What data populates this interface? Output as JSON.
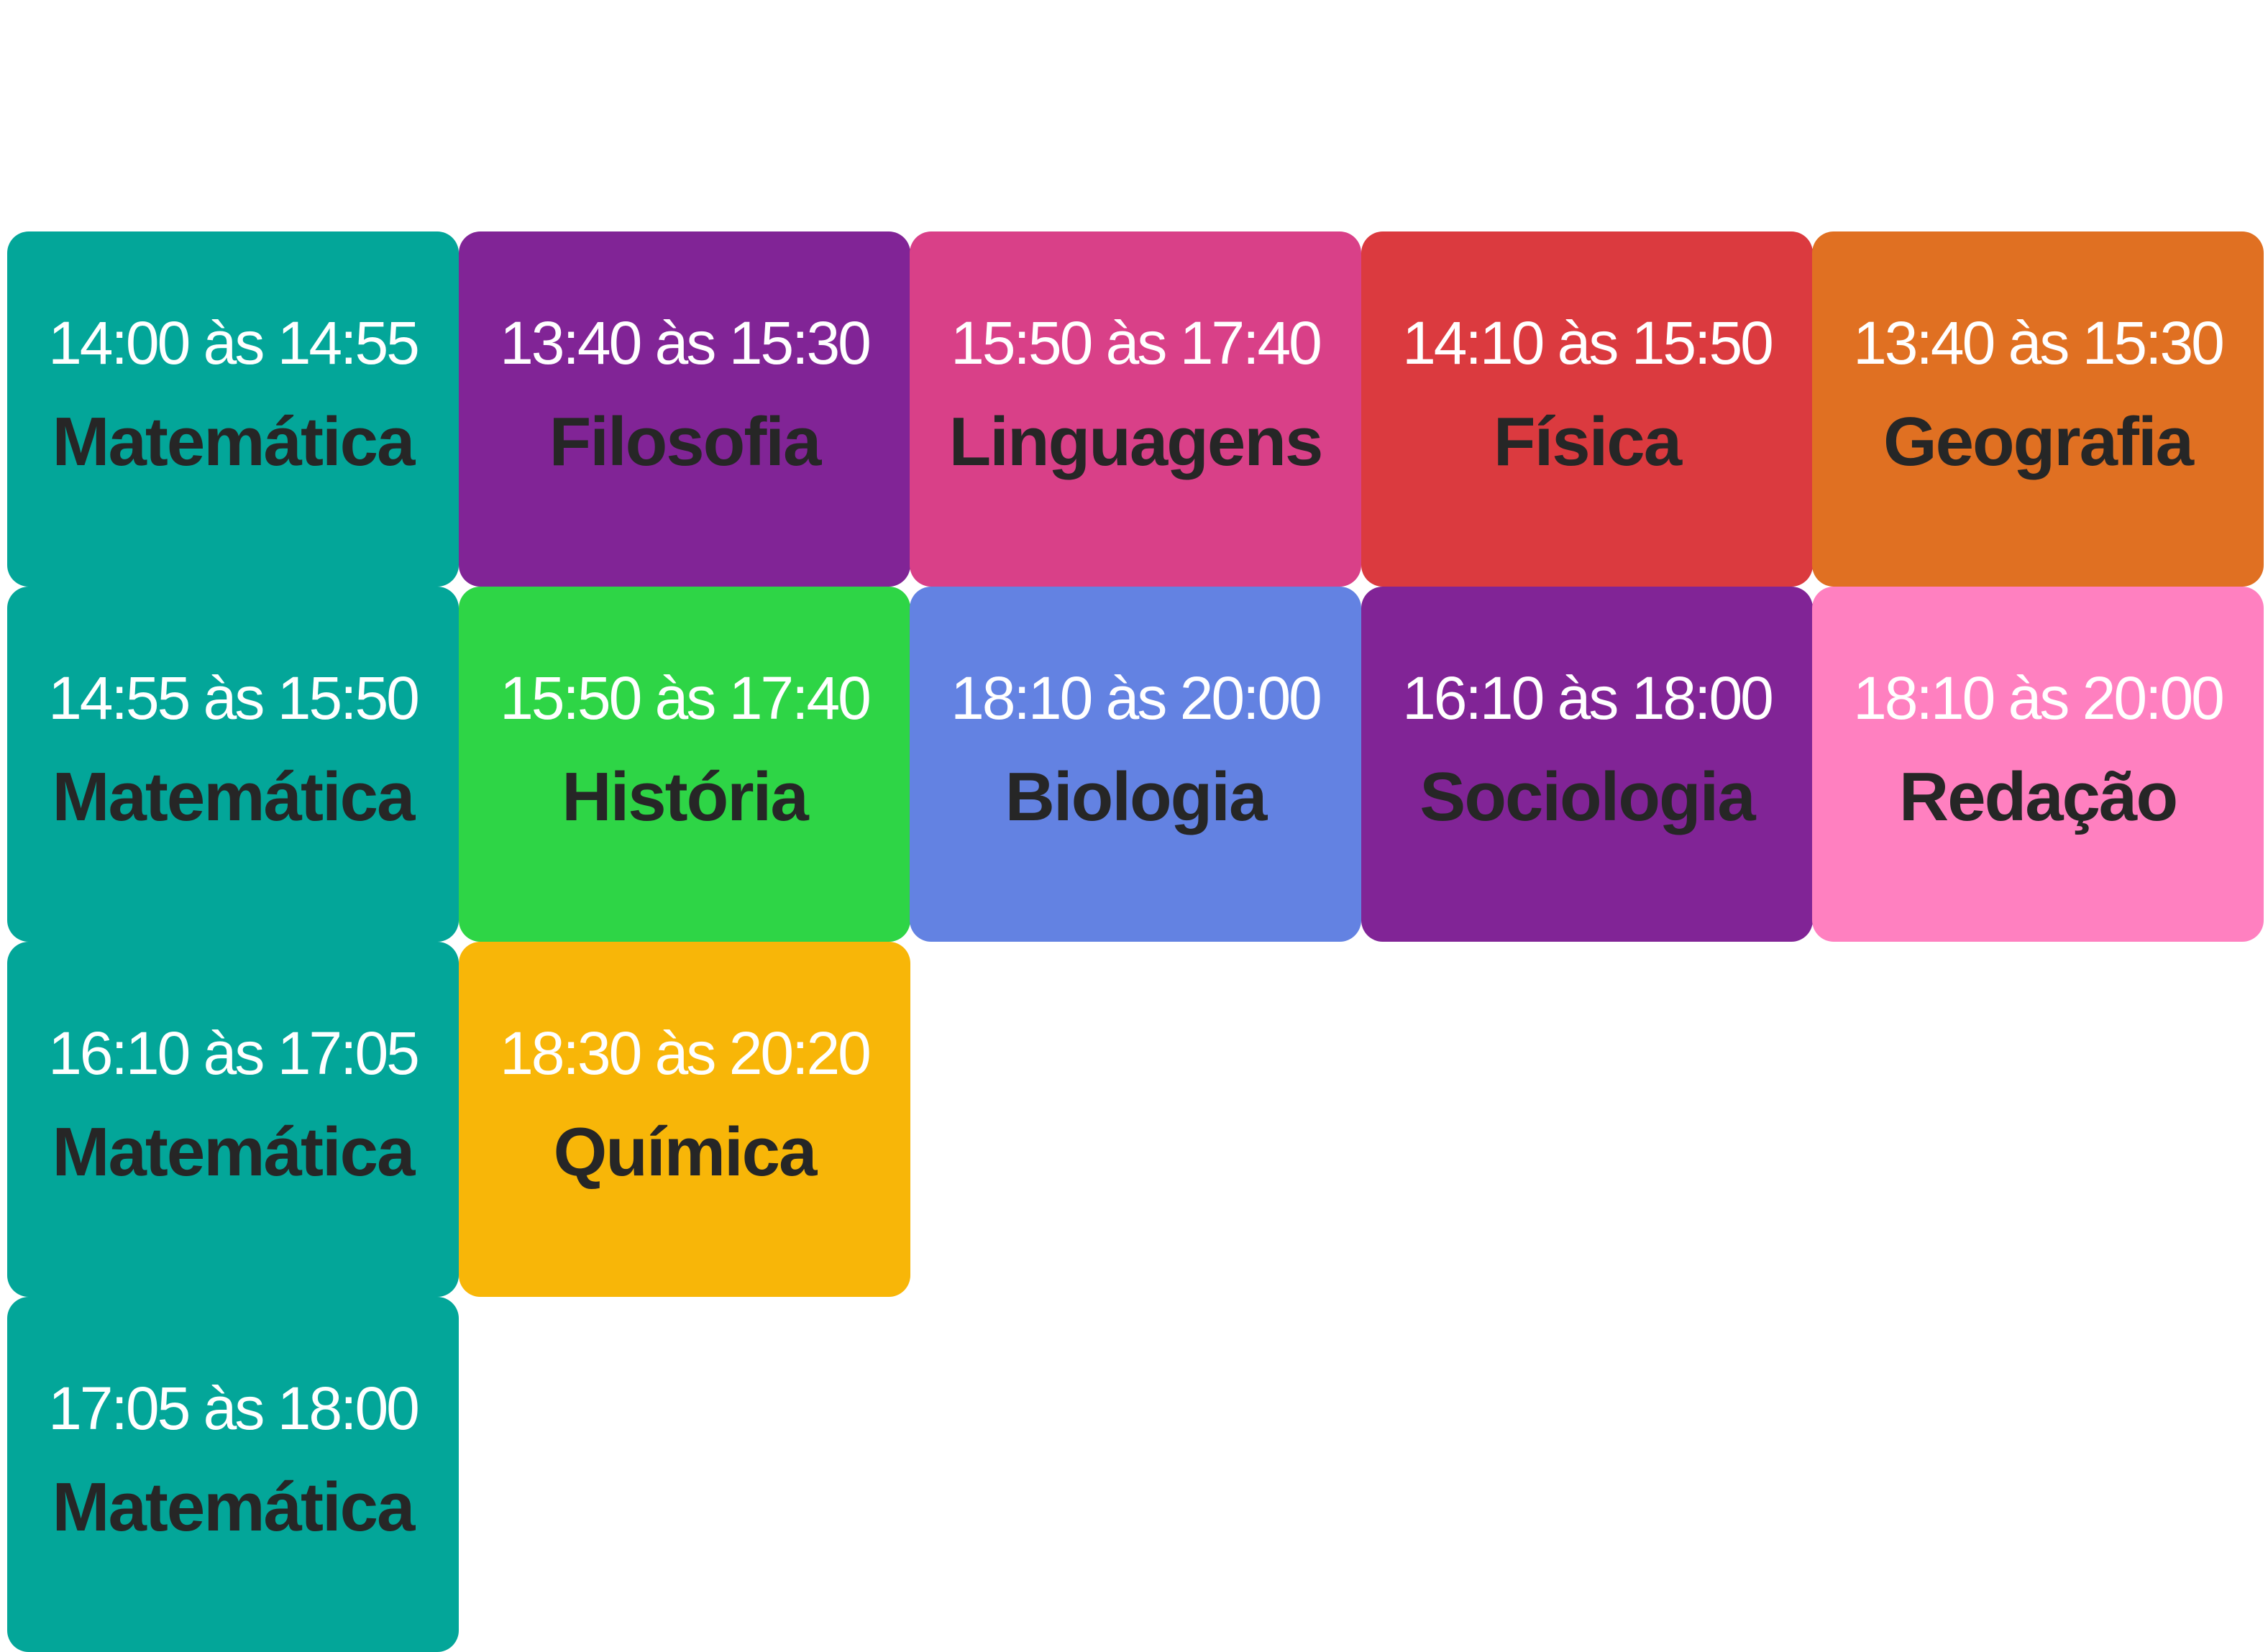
{
  "columns": [
    {
      "items": [
        {
          "time": "14:00 às 14:55",
          "subject": "Matemática",
          "color": "#03A699"
        },
        {
          "time": "14:55 às 15:50",
          "subject": "Matemática",
          "color": "#03A699"
        },
        {
          "time": "16:10 às 17:05",
          "subject": "Matemática",
          "color": "#03A699"
        },
        {
          "time": "17:05 às 18:00",
          "subject": "Matemática",
          "color": "#03A699"
        }
      ]
    },
    {
      "items": [
        {
          "time": "13:40 às 15:30",
          "subject": "Filosofia",
          "color": "#812496"
        },
        {
          "time": "15:50 às 17:40",
          "subject": "História",
          "color": "#2ED546"
        },
        {
          "time": "18:30 às 20:20",
          "subject": "Química",
          "color": "#F8B608"
        }
      ]
    },
    {
      "items": [
        {
          "time": "15:50 às 17:40",
          "subject": "Linguagens",
          "color": "#D94088"
        },
        {
          "time": "18:10 às 20:00",
          "subject": "Biologia",
          "color": "#6382E2"
        }
      ]
    },
    {
      "items": [
        {
          "time": "14:10 às 15:50",
          "subject": "Física",
          "color": "#DB3A3F"
        },
        {
          "time": "16:10 às 18:00",
          "subject": "Sociologia",
          "color": "#812496"
        }
      ]
    },
    {
      "items": [
        {
          "time": "13:40 às 15:30",
          "subject": "Geografia",
          "color": "#E07022"
        },
        {
          "time": "18:10 às 20:00",
          "subject": "Redação",
          "color": "#FF80C0"
        }
      ]
    }
  ]
}
